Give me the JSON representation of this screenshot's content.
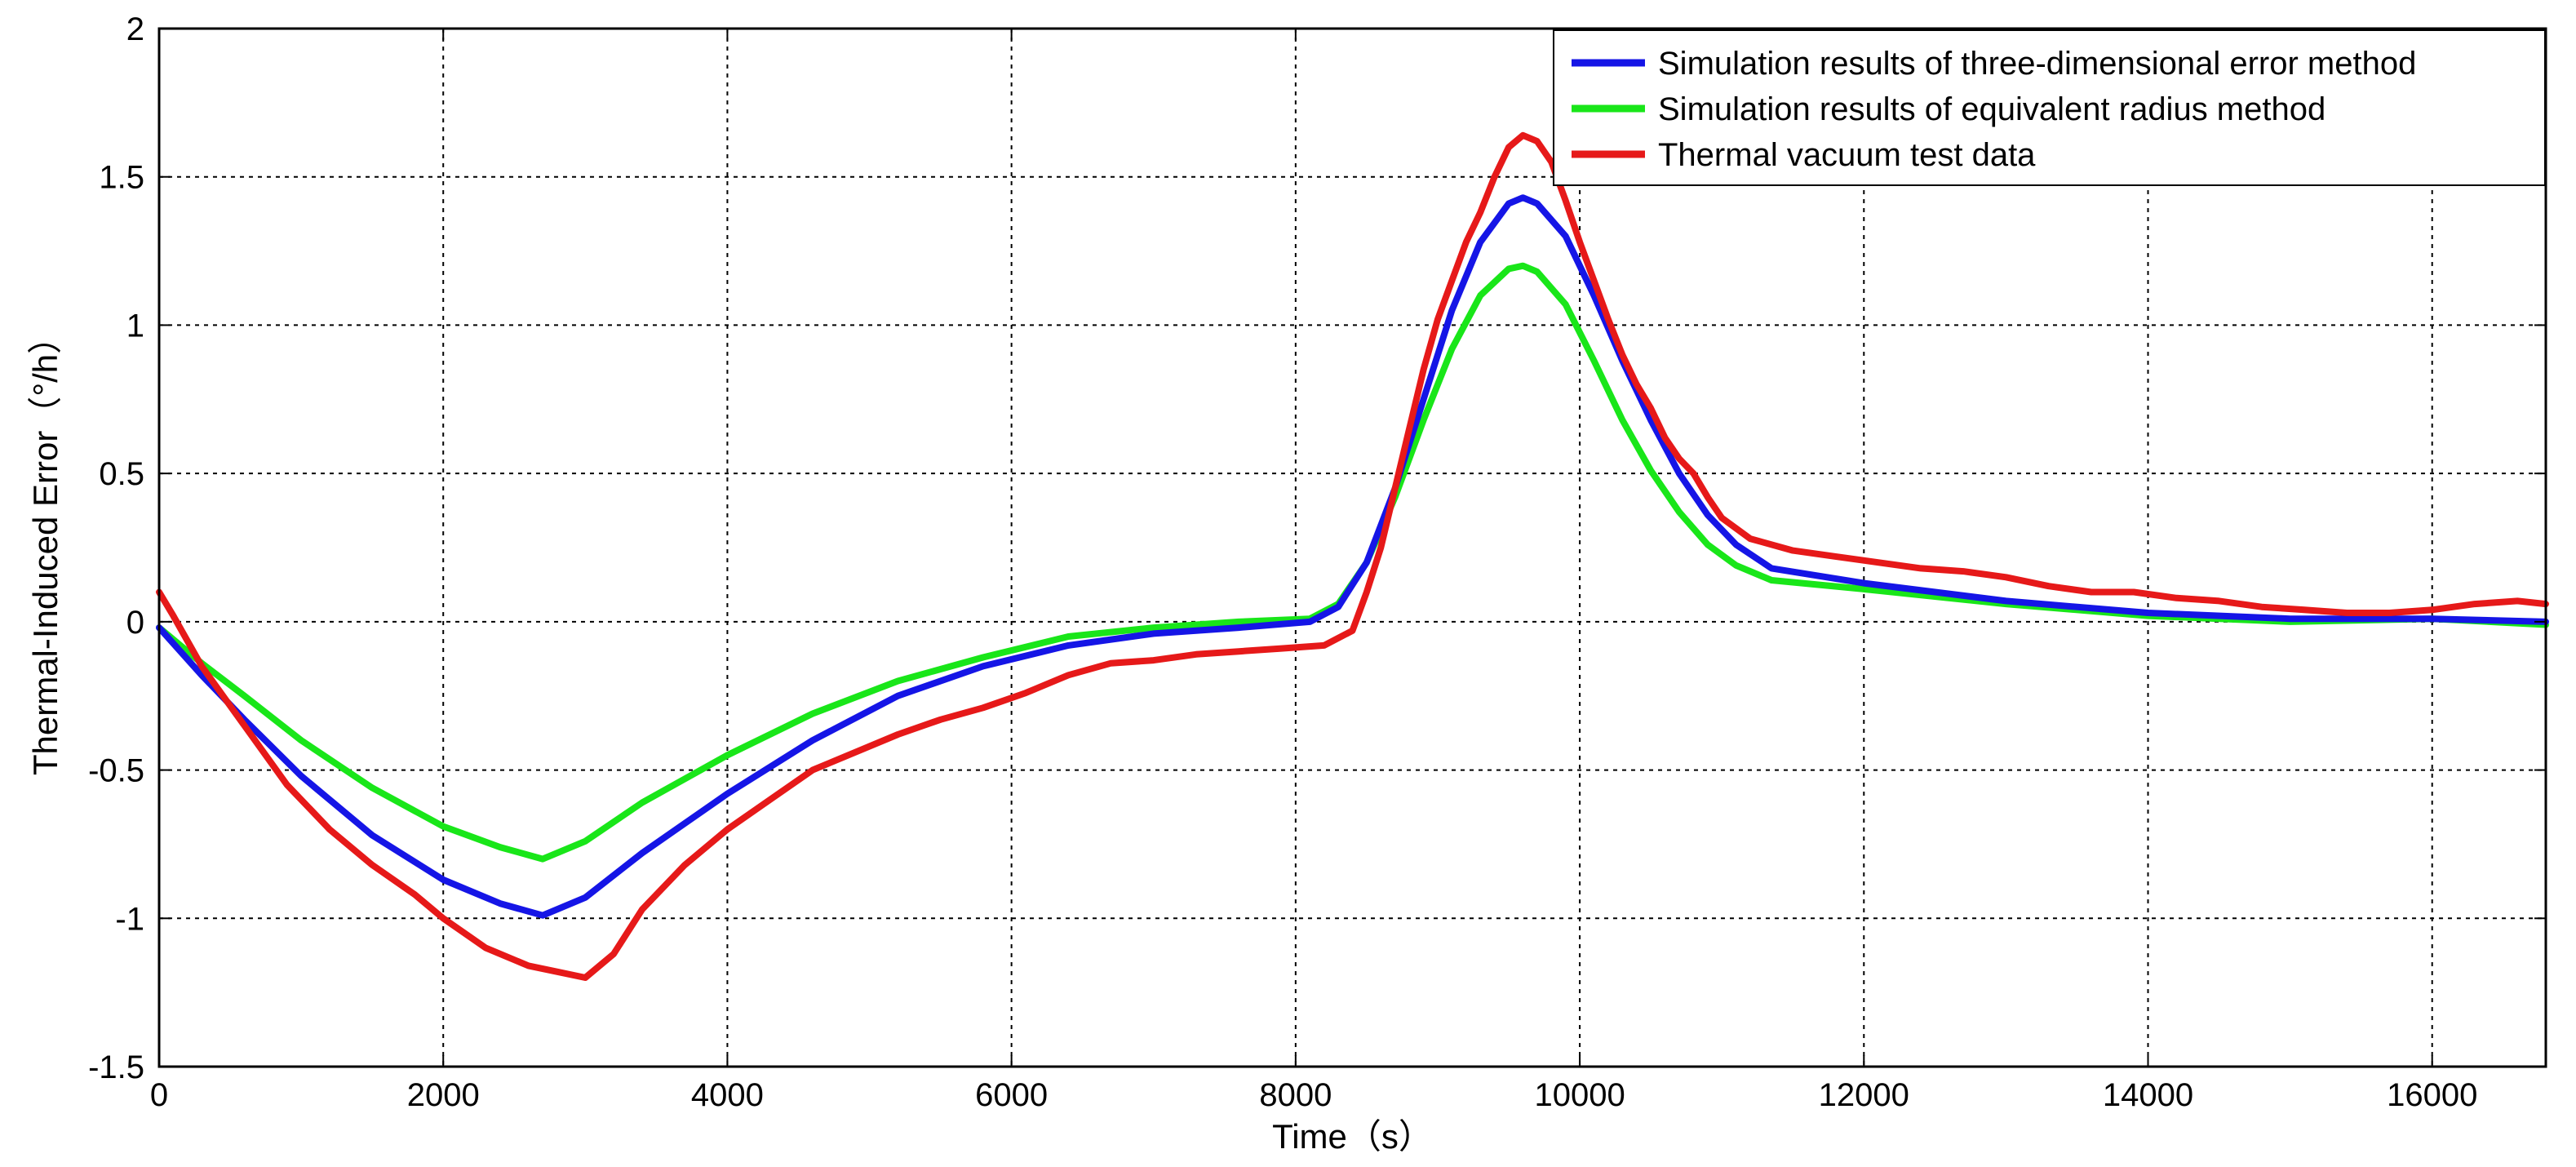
{
  "chart_data": {
    "type": "line",
    "title": "",
    "xlabel": "Time（s）",
    "ylabel": "Thermal-Induced Error（°/h）",
    "xlim": [
      0,
      16800
    ],
    "ylim": [
      -1.5,
      2
    ],
    "xticks": [
      0,
      2000,
      4000,
      6000,
      8000,
      10000,
      12000,
      14000,
      16000
    ],
    "yticks": [
      -1.5,
      -1,
      -0.5,
      0,
      0.5,
      1,
      1.5,
      2
    ],
    "xtick_labels": [
      "0",
      "2000",
      "4000",
      "6000",
      "8000",
      "10000",
      "12000",
      "14000",
      "16000"
    ],
    "ytick_labels": [
      "-1.5",
      "-1",
      "-0.5",
      "0",
      "0.5",
      "1",
      "1.5",
      "2"
    ],
    "grid": true,
    "legend_position": "top-right",
    "series": [
      {
        "name": "Simulation results of three-dimensional error method",
        "color": "#1515e6",
        "x": [
          0,
          300,
          600,
          1000,
          1500,
          2000,
          2400,
          2700,
          3000,
          3400,
          4000,
          4600,
          5200,
          5800,
          6400,
          7000,
          7600,
          8100,
          8300,
          8500,
          8700,
          8900,
          9100,
          9300,
          9500,
          9600,
          9700,
          9900,
          10100,
          10300,
          10500,
          10700,
          10900,
          11100,
          11350,
          12000,
          13000,
          14000,
          15000,
          16000,
          16800
        ],
        "y": [
          -0.02,
          -0.18,
          -0.33,
          -0.52,
          -0.72,
          -0.87,
          -0.95,
          -0.99,
          -0.93,
          -0.78,
          -0.58,
          -0.4,
          -0.25,
          -0.15,
          -0.08,
          -0.04,
          -0.02,
          0.0,
          0.05,
          0.2,
          0.45,
          0.75,
          1.05,
          1.28,
          1.41,
          1.43,
          1.41,
          1.3,
          1.1,
          0.88,
          0.68,
          0.5,
          0.36,
          0.26,
          0.18,
          0.13,
          0.07,
          0.03,
          0.01,
          0.01,
          0.0
        ]
      },
      {
        "name": "Simulation results of equivalent radius method",
        "color": "#19e619",
        "x": [
          0,
          300,
          600,
          1000,
          1500,
          2000,
          2400,
          2700,
          3000,
          3400,
          4000,
          4600,
          5200,
          5800,
          6400,
          7000,
          7600,
          8100,
          8300,
          8500,
          8700,
          8900,
          9100,
          9300,
          9500,
          9600,
          9700,
          9900,
          10100,
          10300,
          10500,
          10700,
          10900,
          11100,
          11350,
          12000,
          13000,
          14000,
          15000,
          16000,
          16800
        ],
        "y": [
          -0.02,
          -0.14,
          -0.25,
          -0.4,
          -0.56,
          -0.69,
          -0.76,
          -0.8,
          -0.74,
          -0.61,
          -0.45,
          -0.31,
          -0.2,
          -0.12,
          -0.05,
          -0.02,
          0.0,
          0.01,
          0.06,
          0.2,
          0.42,
          0.68,
          0.92,
          1.1,
          1.19,
          1.2,
          1.18,
          1.07,
          0.88,
          0.68,
          0.51,
          0.37,
          0.26,
          0.19,
          0.14,
          0.11,
          0.06,
          0.02,
          0.0,
          0.01,
          -0.01
        ]
      },
      {
        "name": "Thermal vacuum test data",
        "color": "#e61919",
        "x": [
          0,
          100,
          300,
          600,
          900,
          1200,
          1500,
          1800,
          2000,
          2300,
          2600,
          2800,
          3000,
          3200,
          3400,
          3700,
          4000,
          4300,
          4600,
          4900,
          5200,
          5500,
          5800,
          6100,
          6400,
          6700,
          7000,
          7300,
          7600,
          7900,
          8200,
          8400,
          8500,
          8600,
          8700,
          8800,
          8900,
          9000,
          9100,
          9200,
          9300,
          9400,
          9500,
          9600,
          9700,
          9800,
          9900,
          10000,
          10100,
          10200,
          10300,
          10400,
          10500,
          10600,
          10700,
          10800,
          10900,
          11000,
          11200,
          11500,
          11800,
          12100,
          12400,
          12700,
          13000,
          13300,
          13600,
          13900,
          14200,
          14500,
          14800,
          15100,
          15400,
          15700,
          16000,
          16300,
          16600,
          16800
        ],
        "y": [
          0.1,
          0.02,
          -0.15,
          -0.35,
          -0.55,
          -0.7,
          -0.82,
          -0.92,
          -1.0,
          -1.1,
          -1.16,
          -1.18,
          -1.2,
          -1.12,
          -0.97,
          -0.82,
          -0.7,
          -0.6,
          -0.5,
          -0.44,
          -0.38,
          -0.33,
          -0.29,
          -0.24,
          -0.18,
          -0.14,
          -0.13,
          -0.11,
          -0.1,
          -0.09,
          -0.08,
          -0.03,
          0.1,
          0.25,
          0.45,
          0.65,
          0.85,
          1.02,
          1.15,
          1.28,
          1.38,
          1.5,
          1.6,
          1.64,
          1.62,
          1.55,
          1.42,
          1.28,
          1.15,
          1.02,
          0.9,
          0.8,
          0.72,
          0.62,
          0.55,
          0.5,
          0.42,
          0.35,
          0.28,
          0.24,
          0.22,
          0.2,
          0.18,
          0.17,
          0.15,
          0.12,
          0.1,
          0.1,
          0.08,
          0.07,
          0.05,
          0.04,
          0.03,
          0.03,
          0.04,
          0.06,
          0.07,
          0.06
        ]
      }
    ]
  }
}
